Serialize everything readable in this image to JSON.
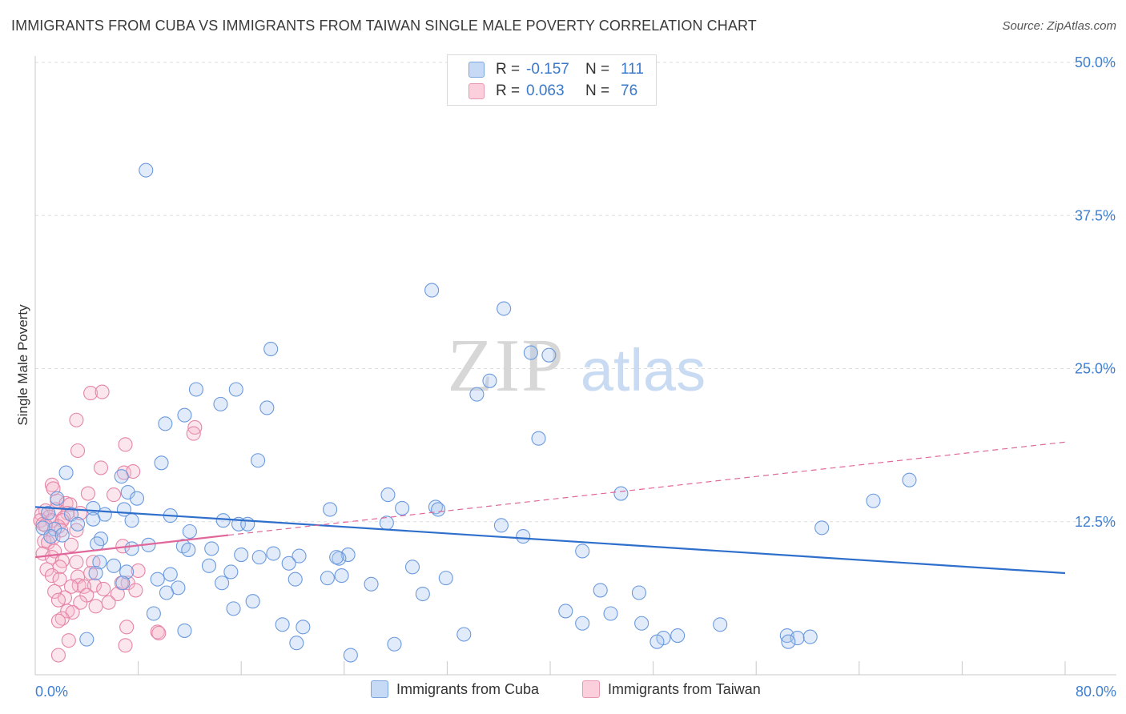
{
  "header": {
    "title": "IMMIGRANTS FROM CUBA VS IMMIGRANTS FROM TAIWAN SINGLE MALE POVERTY CORRELATION CHART",
    "source": "Source: ZipAtlas.com"
  },
  "legend": {
    "series": [
      {
        "name": "Immigrants from Cuba",
        "r_label": "R =",
        "r_value": "-0.157",
        "n_label": "N =",
        "n_value": "111",
        "color": "#a9c6ef",
        "edge": "#5b8fd6"
      },
      {
        "name": "Immigrants from Taiwan",
        "r_label": "R =",
        "r_value": "0.063",
        "n_label": "N =",
        "n_value": "76",
        "color": "#f6b8cb",
        "edge": "#e07aa0"
      }
    ]
  },
  "watermark": {
    "zip": "ZIP",
    "atlas": "atlas"
  },
  "colors": {
    "cuba_line": "#2f6fcc",
    "taiwan_line": "#e0679a",
    "grid": "#dddddd",
    "tick_text": "#3f7fd0"
  },
  "chart_data": {
    "type": "scatter",
    "title": "IMMIGRANTS FROM CUBA VS IMMIGRANTS FROM TAIWAN SINGLE MALE POVERTY CORRELATION CHART",
    "xlabel": "",
    "ylabel": "Single Male Poverty",
    "xlim": [
      0,
      80
    ],
    "ylim": [
      0,
      50
    ],
    "x_tick_labels": [
      "0.0%",
      "80.0%"
    ],
    "y_ticks": [
      12.5,
      25.0,
      37.5,
      50.0
    ],
    "y_tick_labels": [
      "12.5%",
      "25.0%",
      "37.5%",
      "50.0%"
    ],
    "grid": true,
    "series": [
      {
        "name": "Immigrants from Cuba",
        "R": -0.157,
        "N": 111,
        "trend": {
          "x": [
            0,
            80
          ],
          "y": [
            13.7,
            8.3
          ]
        },
        "points": [
          [
            8.6,
            41.2
          ],
          [
            30.8,
            31.4
          ],
          [
            36.4,
            29.9
          ],
          [
            18.3,
            26.6
          ],
          [
            38.5,
            26.3
          ],
          [
            39.9,
            26.1
          ],
          [
            35.3,
            24.0
          ],
          [
            12.5,
            23.3
          ],
          [
            15.6,
            23.3
          ],
          [
            34.3,
            22.9
          ],
          [
            14.4,
            22.1
          ],
          [
            18.0,
            21.8
          ],
          [
            11.6,
            21.2
          ],
          [
            10.1,
            20.5
          ],
          [
            39.1,
            19.3
          ],
          [
            17.3,
            17.5
          ],
          [
            9.8,
            17.3
          ],
          [
            2.4,
            16.5
          ],
          [
            6.7,
            16.2
          ],
          [
            67.9,
            15.9
          ],
          [
            7.2,
            14.9
          ],
          [
            45.5,
            14.8
          ],
          [
            27.4,
            14.7
          ],
          [
            7.9,
            14.4
          ],
          [
            65.1,
            14.2
          ],
          [
            1.7,
            14.4
          ],
          [
            31.1,
            13.7
          ],
          [
            28.5,
            13.6
          ],
          [
            22.9,
            13.5
          ],
          [
            4.5,
            13.6
          ],
          [
            6.9,
            13.5
          ],
          [
            2.8,
            13.1
          ],
          [
            31.3,
            13.5
          ],
          [
            1.0,
            13.2
          ],
          [
            5.4,
            13.1
          ],
          [
            10.5,
            13.0
          ],
          [
            4.5,
            12.7
          ],
          [
            7.5,
            12.6
          ],
          [
            61.1,
            12.0
          ],
          [
            15.8,
            12.3
          ],
          [
            16.5,
            12.3
          ],
          [
            14.6,
            12.6
          ],
          [
            27.3,
            12.4
          ],
          [
            3.3,
            12.3
          ],
          [
            36.2,
            12.2
          ],
          [
            1.5,
            11.9
          ],
          [
            0.6,
            12.0
          ],
          [
            12.0,
            11.7
          ],
          [
            1.2,
            11.3
          ],
          [
            2.1,
            11.4
          ],
          [
            37.9,
            11.3
          ],
          [
            5.1,
            11.1
          ],
          [
            4.8,
            10.7
          ],
          [
            8.8,
            10.6
          ],
          [
            42.5,
            10.1
          ],
          [
            11.5,
            10.5
          ],
          [
            17.4,
            9.6
          ],
          [
            24.3,
            9.8
          ],
          [
            11.9,
            10.2
          ],
          [
            7.5,
            10.3
          ],
          [
            18.5,
            9.9
          ],
          [
            20.5,
            9.7
          ],
          [
            16.0,
            9.8
          ],
          [
            13.7,
            10.3
          ],
          [
            23.6,
            9.5
          ],
          [
            19.7,
            9.1
          ],
          [
            23.4,
            9.6
          ],
          [
            13.5,
            8.9
          ],
          [
            5.0,
            9.2
          ],
          [
            6.1,
            8.9
          ],
          [
            4.7,
            8.3
          ],
          [
            15.2,
            8.4
          ],
          [
            29.3,
            8.8
          ],
          [
            10.5,
            8.2
          ],
          [
            7.1,
            8.4
          ],
          [
            31.9,
            7.9
          ],
          [
            23.8,
            8.1
          ],
          [
            9.5,
            7.8
          ],
          [
            26.1,
            7.4
          ],
          [
            14.5,
            7.5
          ],
          [
            20.2,
            7.8
          ],
          [
            6.8,
            7.5
          ],
          [
            22.7,
            7.9
          ],
          [
            11.1,
            7.1
          ],
          [
            43.9,
            6.9
          ],
          [
            46.9,
            6.7
          ],
          [
            10.2,
            6.7
          ],
          [
            30.1,
            6.6
          ],
          [
            16.9,
            6.0
          ],
          [
            15.4,
            5.4
          ],
          [
            41.2,
            5.2
          ],
          [
            44.7,
            5.0
          ],
          [
            9.2,
            5.0
          ],
          [
            42.5,
            4.2
          ],
          [
            47.1,
            4.2
          ],
          [
            53.2,
            4.1
          ],
          [
            19.2,
            4.1
          ],
          [
            20.8,
            3.9
          ],
          [
            11.6,
            3.6
          ],
          [
            33.3,
            3.3
          ],
          [
            48.8,
            3.0
          ],
          [
            49.9,
            3.2
          ],
          [
            58.4,
            3.2
          ],
          [
            59.2,
            3.0
          ],
          [
            60.2,
            3.1
          ],
          [
            48.3,
            2.7
          ],
          [
            58.5,
            2.7
          ],
          [
            4.0,
            2.9
          ],
          [
            20.3,
            2.6
          ],
          [
            24.5,
            1.6
          ],
          [
            27.9,
            2.5
          ]
        ]
      },
      {
        "name": "Immigrants from Taiwan",
        "R": 0.063,
        "N": 76,
        "trend": {
          "x": [
            0,
            15
          ],
          "y": [
            9.6,
            11.4
          ]
        },
        "trend_dashed": {
          "x": [
            15,
            80
          ],
          "y": [
            11.4,
            19.0
          ]
        },
        "points": [
          [
            4.3,
            23.0
          ],
          [
            5.2,
            23.1
          ],
          [
            3.2,
            20.8
          ],
          [
            12.4,
            20.2
          ],
          [
            12.3,
            19.7
          ],
          [
            7.0,
            18.8
          ],
          [
            3.3,
            18.3
          ],
          [
            5.1,
            16.9
          ],
          [
            6.9,
            16.5
          ],
          [
            7.6,
            16.6
          ],
          [
            1.3,
            15.5
          ],
          [
            1.4,
            15.2
          ],
          [
            4.1,
            14.8
          ],
          [
            6.1,
            14.7
          ],
          [
            1.7,
            14.2
          ],
          [
            2.4,
            14.0
          ],
          [
            2.7,
            13.9
          ],
          [
            1.6,
            13.5
          ],
          [
            0.8,
            13.4
          ],
          [
            2.5,
            13.2
          ],
          [
            3.5,
            13.2
          ],
          [
            0.5,
            13.1
          ],
          [
            1.1,
            12.9
          ],
          [
            2.2,
            12.8
          ],
          [
            0.4,
            12.6
          ],
          [
            0.6,
            12.3
          ],
          [
            1.3,
            12.6
          ],
          [
            2.1,
            12.6
          ],
          [
            0.8,
            12.2
          ],
          [
            1.8,
            12.1
          ],
          [
            2.0,
            11.8
          ],
          [
            3.2,
            11.8
          ],
          [
            1.4,
            11.2
          ],
          [
            0.7,
            10.9
          ],
          [
            1.0,
            10.8
          ],
          [
            2.8,
            10.6
          ],
          [
            6.8,
            10.5
          ],
          [
            1.5,
            10.1
          ],
          [
            0.6,
            9.9
          ],
          [
            1.3,
            9.6
          ],
          [
            2.1,
            9.3
          ],
          [
            4.5,
            9.2
          ],
          [
            3.2,
            9.2
          ],
          [
            1.9,
            8.8
          ],
          [
            0.9,
            8.6
          ],
          [
            8.0,
            8.5
          ],
          [
            4.3,
            8.3
          ],
          [
            1.3,
            8.1
          ],
          [
            3.3,
            8.0
          ],
          [
            1.9,
            7.8
          ],
          [
            7.2,
            7.5
          ],
          [
            6.7,
            7.5
          ],
          [
            3.4,
            7.3
          ],
          [
            4.6,
            7.3
          ],
          [
            3.8,
            7.2
          ],
          [
            5.3,
            7.0
          ],
          [
            2.8,
            7.2
          ],
          [
            7.8,
            6.9
          ],
          [
            1.5,
            6.8
          ],
          [
            6.4,
            6.6
          ],
          [
            4.0,
            6.5
          ],
          [
            2.3,
            6.3
          ],
          [
            1.8,
            6.1
          ],
          [
            3.5,
            5.9
          ],
          [
            5.7,
            5.9
          ],
          [
            4.7,
            5.6
          ],
          [
            2.5,
            5.2
          ],
          [
            2.9,
            5.1
          ],
          [
            2.1,
            4.6
          ],
          [
            1.8,
            4.4
          ],
          [
            7.1,
            3.9
          ],
          [
            9.5,
            3.5
          ],
          [
            9.6,
            3.4
          ],
          [
            2.6,
            2.8
          ],
          [
            7.0,
            2.4
          ],
          [
            1.8,
            1.6
          ]
        ]
      }
    ]
  }
}
